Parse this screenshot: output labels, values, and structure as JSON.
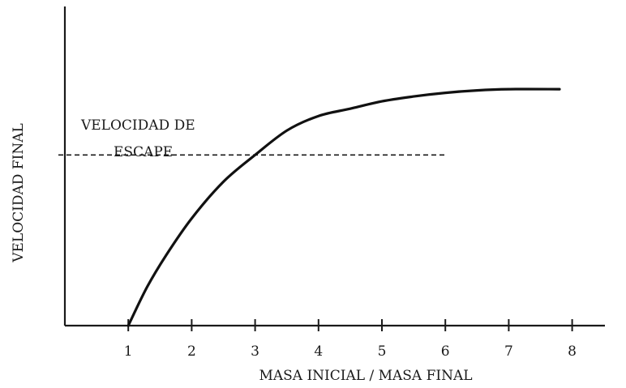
{
  "chart_data": {
    "type": "line",
    "xlabel": "MASA INICIAL / MASA FINAL",
    "ylabel": "VELOCIDAD FINAL",
    "x_ticks": [
      "1",
      "2",
      "3",
      "4",
      "5",
      "6",
      "7",
      "8"
    ],
    "xlim": [
      0,
      8.5
    ],
    "ylim": [
      0,
      1.05
    ],
    "y_ticks_shown": false,
    "grid": false,
    "series": [
      {
        "x": [
          1,
          1.3,
          1.6,
          2,
          2.5,
          3,
          3.5,
          4,
          4.5,
          5,
          5.5,
          6,
          6.5,
          7,
          7.8
        ],
        "y": [
          0,
          0.16,
          0.29,
          0.44,
          0.59,
          0.7,
          0.8,
          0.86,
          0.89,
          0.92,
          0.94,
          0.955,
          0.965,
          0.97,
          0.97
        ]
      }
    ],
    "reference_line": {
      "style": "dashed",
      "y": 0.7,
      "x_start": 0,
      "x_end": 6,
      "label_lines": [
        "VELOCIDAD DE",
        "ESCAPE"
      ]
    }
  }
}
